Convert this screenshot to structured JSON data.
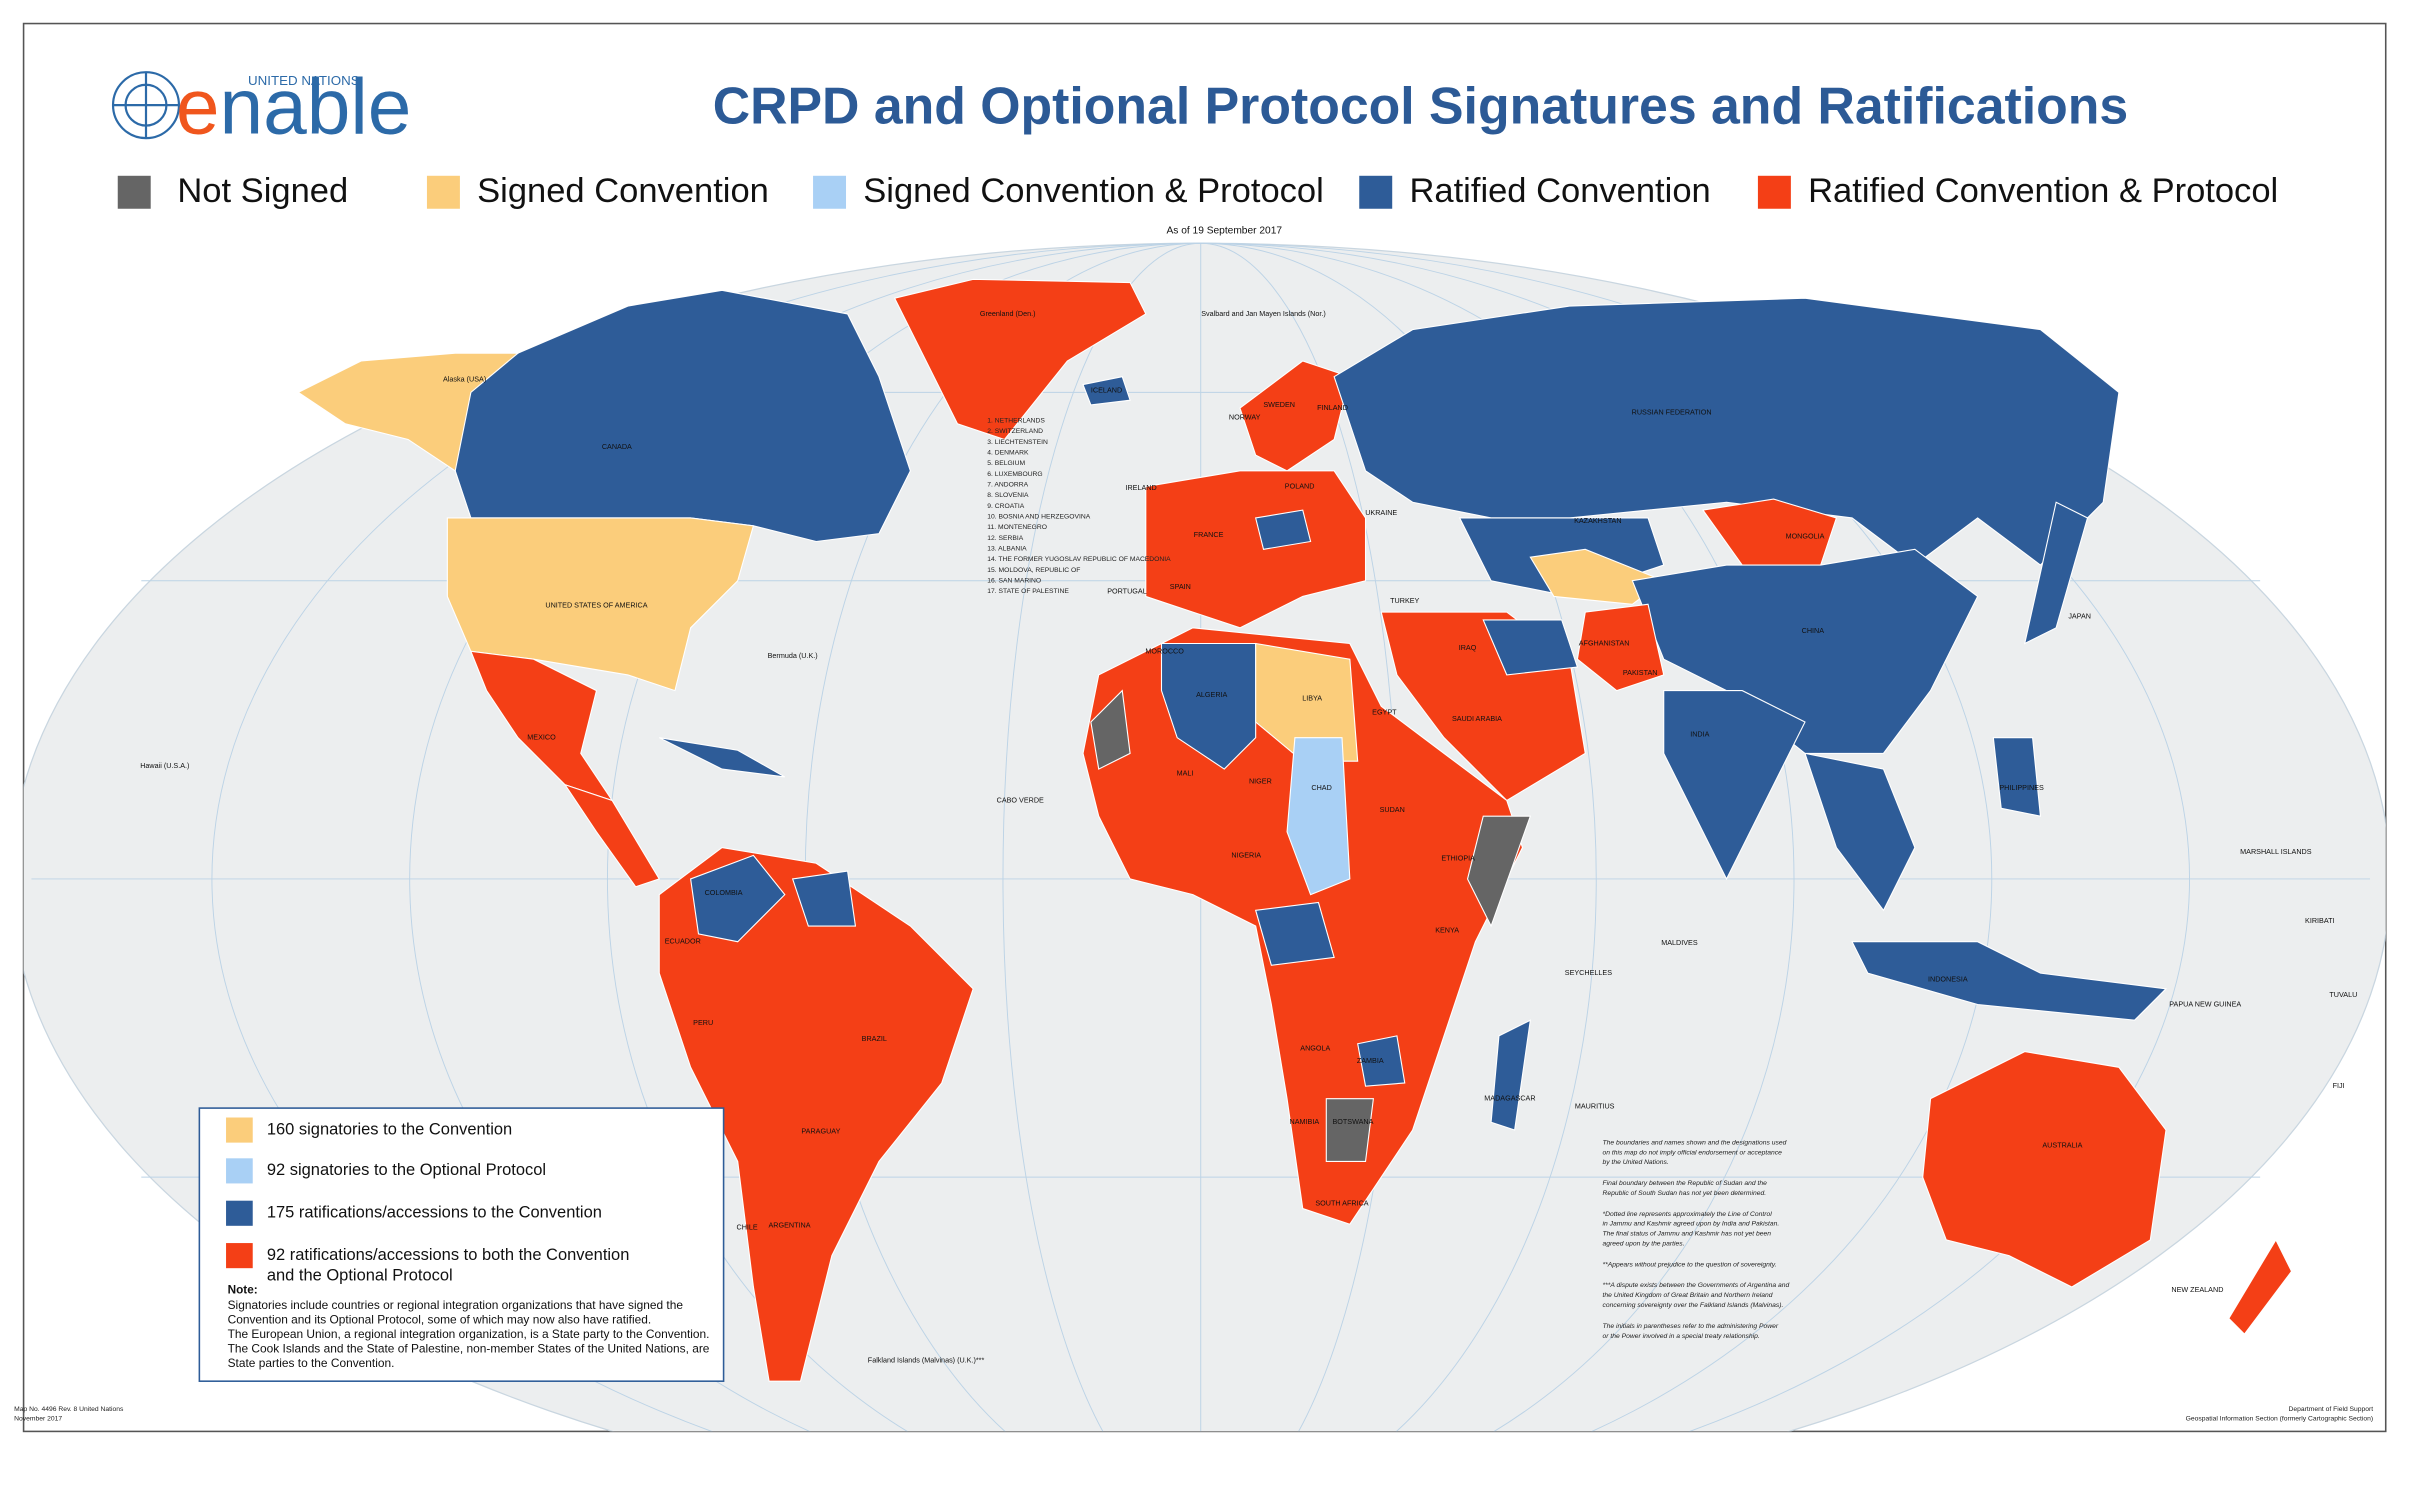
{
  "logo": {
    "org": "UNITED NATIONS",
    "name": "enable"
  },
  "title": "CRPD and Optional Protocol  Signatures and Ratifications",
  "legend": [
    {
      "label": "Not Signed",
      "color": "#656565"
    },
    {
      "label": "Signed Convention",
      "color": "#fbcd7b"
    },
    {
      "label": "Signed Convention & Protocol",
      "color": "#a9d0f5"
    },
    {
      "label": "Ratified Convention",
      "color": "#2e5c98"
    },
    {
      "label": "Ratified Convention & Protocol",
      "color": "#f43f16"
    }
  ],
  "as_of": "As of  19 September 2017",
  "summary_box": {
    "items": [
      [
        "160 signatories to the Convention"
      ],
      [
        "92 signatories to the Optional Protocol"
      ],
      [
        "175 ratifications/accessions to the Convention"
      ],
      [
        "92 ratifications/accessions to both the Convention",
        "and the Optional Protocol"
      ]
    ],
    "note_title": "Note:",
    "note_lines": [
      "Signatories include countries or regional integration organizations that have signed the",
      "Convention and its Optional Protocol, some of which may now also have ratified.",
      "The European Union, a regional integration organization, is a State party to the Convention.",
      "The Cook Islands and the State of Palestine, non-member States of the United Nations, are",
      "State parties to the Convention."
    ]
  },
  "country_labels": [
    "Alaska (USA)",
    "CANADA",
    "UNITED STATES OF AMERICA",
    "MEXICO",
    "Greenland (Den.)",
    "ICELAND",
    "Svalbard and Jan Mayen Islands (Nor.)",
    "RUSSIAN FEDERATION",
    "KAZAKHSTAN",
    "MONGOLIA",
    "CHINA",
    "INDIA",
    "JAPAN",
    "PAKISTAN",
    "AFGHANISTAN",
    "IRAQ",
    "SAUDI ARABIA",
    "TURKEY",
    "ALGERIA",
    "LIBYA",
    "EGYPT",
    "MALI",
    "NIGER",
    "CHAD",
    "SUDAN",
    "ETHIOPIA",
    "NIGERIA",
    "ANGOLA",
    "ZAMBIA",
    "NAMIBIA",
    "BOTSWANA",
    "SOUTH AFRICA",
    "KENYA",
    "BRAZIL",
    "PERU",
    "COLOMBIA",
    "ECUADOR",
    "ARGENTINA",
    "CHILE",
    "PARAGUAY",
    "AUSTRALIA",
    "NEW ZEALAND",
    "INDONESIA",
    "PHILIPPINES",
    "FRANCE",
    "SPAIN",
    "PORTUGAL",
    "IRELAND",
    "NORWAY",
    "SWEDEN",
    "FINLAND",
    "POLAND",
    "UKRAINE",
    "MOROCCO",
    "Hawaii (U.S.A.)",
    "Bermuda (U.K.)",
    "Falkland Islands (Malvinas) (U.K.)***",
    "CABO VERDE",
    "SEYCHELLES",
    "MALDIVES",
    "PAPUA NEW GUINEA",
    "MARSHALL ISLANDS",
    "KIRIBATI",
    "TUVALU",
    "FIJI",
    "MADAGASCAR",
    "MAURITIUS"
  ],
  "numbered_list": [
    "1.  NETHERLANDS",
    "2.  SWITZERLAND",
    "3.  LIECHTENSTEIN",
    "4.  DENMARK",
    "5.  BELGIUM",
    "6.  LUXEMBOURG",
    "7.  ANDORRA",
    "8.  SLOVENIA",
    "9.  CROATIA",
    "10. BOSNIA AND HERZEGOVINA",
    "11. MONTENEGRO",
    "12. SERBIA",
    "13. ALBANIA",
    "14. THE FORMER YUGOSLAV REPUBLIC OF MACEDONIA",
    "15. MOLDOVA, REPUBLIC OF",
    "16. SAN MARINO",
    "17. STATE OF PALESTINE"
  ],
  "disclaimer": [
    [
      "The boundaries and names shown  and the designations used",
      "on this map do not imply official endorsement or acceptance",
      "by the United Nations."
    ],
    [
      "Final boundary between the Republic of Sudan and the",
      "Republic of South Sudan has not yet been determined."
    ],
    [
      "*Dotted line represents approximately the Line of Control",
      "in Jammu and Kashmir agreed upon by India and Pakistan.",
      "The final status of Jammu and Kashmir has not yet been",
      "agreed upon by the parties."
    ],
    [
      "**Appears without prejudice to the question of sovereignty."
    ],
    [
      "***A dispute exists between the Governments of Argentina and",
      "the United Kingdom of Great Britain and Northern Ireland",
      "concerning sovereignty over the Falkland Islands (Malvinas)."
    ],
    [
      "The initials in parentheses refer to the administering Power",
      "or the Power involved in a special treaty relationship."
    ]
  ],
  "footer": {
    "left": [
      "Map No. 4496 Rev. 8  United Nations",
      "November 2017"
    ],
    "right": [
      "Department of Field Support",
      "Geospatial Information Section (formerly Cartographic Section)"
    ]
  }
}
